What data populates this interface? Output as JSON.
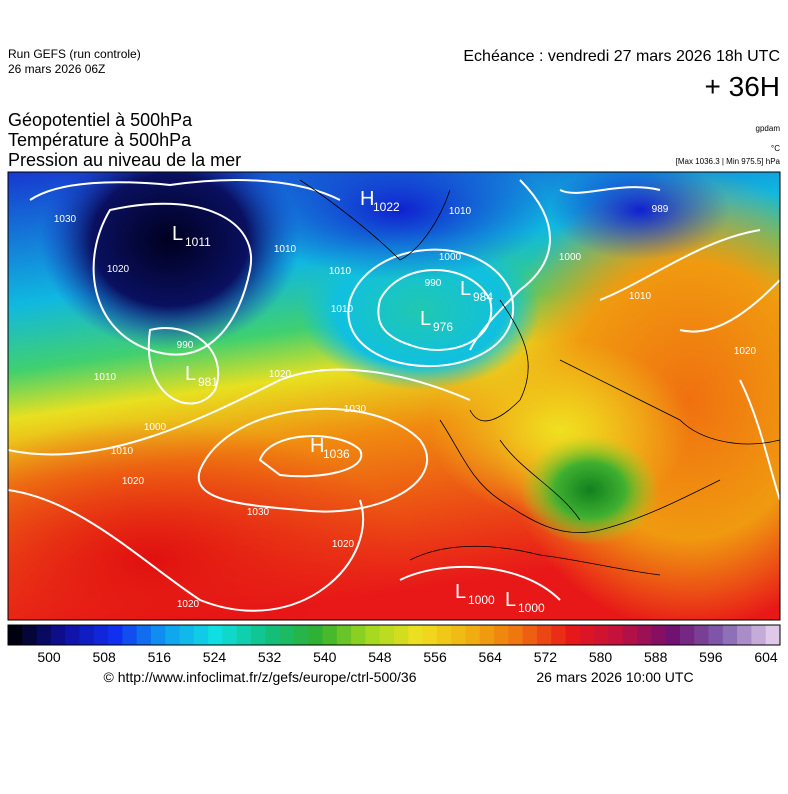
{
  "header": {
    "run": "Run GEFS (run controle)",
    "run_date": "26 mars 2026 06Z",
    "echeance": "Echéance : vendredi 27 mars 2026 18h UTC",
    "lead": "+ 36H"
  },
  "legend": {
    "lines": [
      "Géopotentiel à 500hPa",
      "Température à 500hPa",
      "Pression au niveau de la mer"
    ],
    "units": [
      "gpdam",
      "°C",
      "[Max 1036.3 | Min 975.5] hPa"
    ]
  },
  "map": {
    "centers": [
      {
        "type": "L",
        "value": "1011"
      },
      {
        "type": "H",
        "value": "1022"
      },
      {
        "type": "L",
        "value": "984"
      },
      {
        "type": "L",
        "value": "976"
      },
      {
        "type": "L",
        "value": "981"
      },
      {
        "type": "H",
        "value": "1036"
      },
      {
        "type": "L",
        "value": "1000"
      },
      {
        "type": "L",
        "value": "1000"
      }
    ],
    "isobar_labels": [
      "1030",
      "1020",
      "1010",
      "1010",
      "1010",
      "1000",
      "990",
      "1010",
      "990",
      "1010",
      "1000",
      "1010",
      "1020",
      "1020",
      "1030",
      "1030",
      "1020",
      "1020",
      "1000",
      "1010",
      "1020",
      "989"
    ]
  },
  "colorbar": {
    "labels": [
      500,
      508,
      516,
      524,
      532,
      540,
      548,
      556,
      564,
      572,
      580,
      588,
      596,
      604
    ]
  },
  "footer": {
    "url": "© http://www.infoclimat.fr/z/gefs/europe/ctrl-500/36",
    "date": "26 mars 2026 10:00 UTC"
  }
}
